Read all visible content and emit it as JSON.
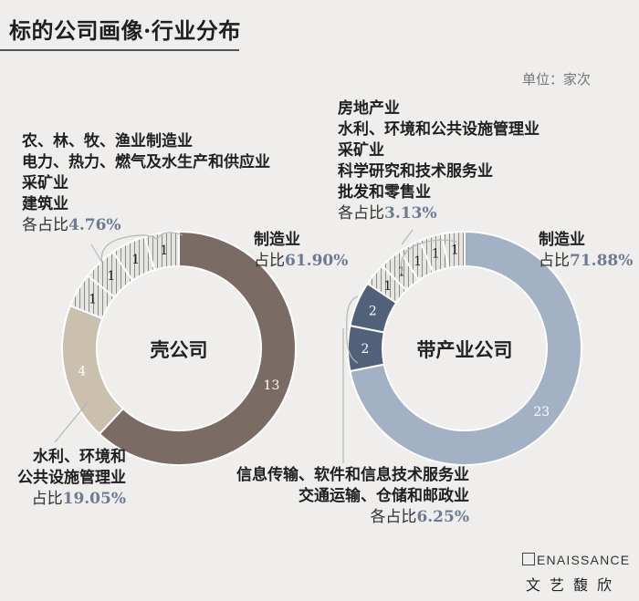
{
  "title": "标的公司画像·行业分布",
  "unit": "单位：家次",
  "chart_data": [
    {
      "type": "pie",
      "center_label": "壳公司",
      "slices": [
        {
          "label": "制造业",
          "value": 13,
          "color": "#7a6b65"
        },
        {
          "label": "水利、环境和公共设施管理业",
          "value": 4,
          "color": "#cbbfae"
        },
        {
          "label": "农、林、牧、渔业",
          "value": 1,
          "color": "hatch"
        },
        {
          "label": "电力、热力、燃气及水生产和供应业",
          "value": 1,
          "color": "hatch"
        },
        {
          "label": "采矿业",
          "value": 1,
          "color": "hatch"
        },
        {
          "label": "建筑业",
          "value": 1,
          "color": "hatch"
        }
      ]
    },
    {
      "type": "pie",
      "center_label": "带产业公司",
      "slices": [
        {
          "label": "制造业",
          "value": 23,
          "color": "#a3b1c4"
        },
        {
          "label": "信息传输、软件和信息技术服务业",
          "value": 2,
          "color": "#52617a"
        },
        {
          "label": "交通运输、仓储和邮政业",
          "value": 2,
          "color": "#52617a"
        },
        {
          "label": "房地产业",
          "value": 1,
          "color": "hatch"
        },
        {
          "label": "水利、环境和公共设施管理业",
          "value": 1,
          "color": "hatch"
        },
        {
          "label": "采矿业",
          "value": 1,
          "color": "hatch"
        },
        {
          "label": "科学研究和技术服务业",
          "value": 1,
          "color": "hatch"
        },
        {
          "label": "批发和零售业",
          "value": 1,
          "color": "hatch"
        }
      ]
    }
  ],
  "annotations": {
    "left_top": {
      "lines": [
        "农、林、牧、渔业制造业",
        "电力、热力、燃气及水生产和供应业",
        "采矿业",
        "建筑业"
      ],
      "share_prefix": "各占比",
      "share_value": "4.76%"
    },
    "left_mfg": {
      "label": "制造业",
      "share_prefix": "占比",
      "share_value": "61.90%"
    },
    "left_bottom": {
      "lines": [
        "水利、环境和",
        "公共设施管理业"
      ],
      "share_prefix": "占比",
      "share_value": "19.05%"
    },
    "right_top": {
      "lines": [
        "房地产业",
        "水利、环境和公共设施管理业",
        "采矿业",
        "科学研究和技术服务业",
        "批发和零售业"
      ],
      "share_prefix": "各占比",
      "share_value": "3.13%"
    },
    "right_mfg": {
      "label": "制造业",
      "share_prefix": "占比",
      "share_value": "71.88%"
    },
    "right_bottom": {
      "lines": [
        "信息传输、软件和信息技术服务业",
        "交通运输、仓储和邮政业"
      ],
      "share_prefix": "各占比",
      "share_value": "6.25%"
    }
  },
  "logo": {
    "en": "ENAISSANCE",
    "cn": "文艺馥欣"
  }
}
